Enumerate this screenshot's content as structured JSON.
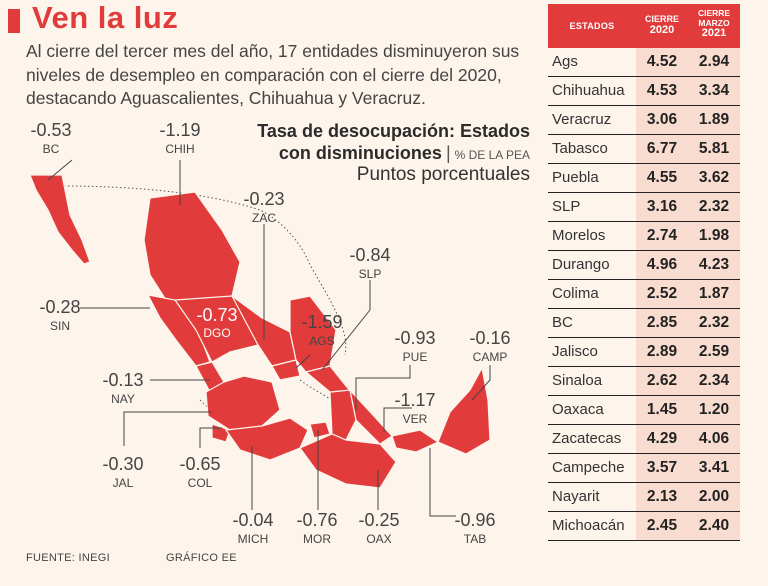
{
  "header": {
    "title": "Ven la luz",
    "intro": "Al cierre del tercer mes del año, 17 entidades disminuyeron sus niveles de desempleo en comparación con el cierre del 2020, destacando Aguascalientes, Chihuahua y Veracruz."
  },
  "chart_title": {
    "line1": "Tasa de desocupación: Estados",
    "line2": "con disminuciones",
    "unit": "% DE LA PEA",
    "subtitle": "Puntos porcentuales"
  },
  "colors": {
    "accent": "#e23b3b",
    "map_fill": "#e23b3b",
    "table_value_bg": "#f9dcd0",
    "background": "#fdf4ec"
  },
  "chart_data": [
    {
      "type": "map",
      "title": "Tasa de desocupación: Estados con disminuciones",
      "unit": "Puntos porcentuales",
      "labels": [
        {
          "state": "BC",
          "value": "-0.53"
        },
        {
          "state": "CHIH",
          "value": "-1.19"
        },
        {
          "state": "ZAC",
          "value": "-0.23"
        },
        {
          "state": "SLP",
          "value": "-0.84"
        },
        {
          "state": "SIN",
          "value": "-0.28"
        },
        {
          "state": "DGO",
          "value": "-0.73"
        },
        {
          "state": "AGS",
          "value": "-1.59"
        },
        {
          "state": "PUE",
          "value": "-0.93"
        },
        {
          "state": "CAMP",
          "value": "-0.16"
        },
        {
          "state": "NAY",
          "value": "-0.13"
        },
        {
          "state": "VER",
          "value": "-1.17"
        },
        {
          "state": "JAL",
          "value": "-0.30"
        },
        {
          "state": "COL",
          "value": "-0.65"
        },
        {
          "state": "MICH",
          "value": "-0.04"
        },
        {
          "state": "MOR",
          "value": "-0.76"
        },
        {
          "state": "OAX",
          "value": "-0.25"
        },
        {
          "state": "TAB",
          "value": "-0.96"
        }
      ]
    },
    {
      "type": "table",
      "columns": [
        "ESTADOS",
        "CIERRE 2020",
        "CIERRE MARZO 2021"
      ],
      "rows": [
        {
          "state": "Ags",
          "y2020": "4.52",
          "y2021": "2.94"
        },
        {
          "state": "Chihuahua",
          "y2020": "4.53",
          "y2021": "3.34"
        },
        {
          "state": "Veracruz",
          "y2020": "3.06",
          "y2021": "1.89"
        },
        {
          "state": "Tabasco",
          "y2020": "6.77",
          "y2021": "5.81"
        },
        {
          "state": "Puebla",
          "y2020": "4.55",
          "y2021": "3.62"
        },
        {
          "state": "SLP",
          "y2020": "3.16",
          "y2021": "2.32"
        },
        {
          "state": "Morelos",
          "y2020": "2.74",
          "y2021": "1.98"
        },
        {
          "state": "Durango",
          "y2020": "4.96",
          "y2021": "4.23"
        },
        {
          "state": "Colima",
          "y2020": "2.52",
          "y2021": "1.87"
        },
        {
          "state": "BC",
          "y2020": "2.85",
          "y2021": "2.32"
        },
        {
          "state": "Jalisco",
          "y2020": "2.89",
          "y2021": "2.59"
        },
        {
          "state": "Sinaloa",
          "y2020": "2.62",
          "y2021": "2.34"
        },
        {
          "state": "Oaxaca",
          "y2020": "1.45",
          "y2021": "1.20"
        },
        {
          "state": "Zacatecas",
          "y2020": "4.29",
          "y2021": "4.06"
        },
        {
          "state": "Campeche",
          "y2020": "3.57",
          "y2021": "3.41"
        },
        {
          "state": "Nayarit",
          "y2020": "2.13",
          "y2021": "2.00"
        },
        {
          "state": "Michoacán",
          "y2020": "2.45",
          "y2021": "2.40"
        }
      ]
    }
  ],
  "table_header": {
    "states": "ESTADOS",
    "col2020_top": "CIERRE",
    "col2020_year": "2020",
    "col2021_top": "CIERRE",
    "col2021_mid": "MARZO",
    "col2021_year": "2021"
  },
  "footer": {
    "source": "FUENTE: INEGI",
    "credit": "GRÁFICO EE"
  }
}
